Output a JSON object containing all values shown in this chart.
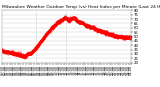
{
  "title": "Milwaukee Weather Outdoor Temp (vs) Heat Index per Minute (Last 24 Hours)",
  "line_color": "#ff0000",
  "background_color": "#ffffff",
  "plot_bg_color": "#ffffff",
  "grid_color": "#bbbbbb",
  "vline_color": "#999999",
  "vline_positions": [
    0.265,
    0.5
  ],
  "ylim": [
    20,
    80
  ],
  "yticks": [
    20,
    25,
    30,
    35,
    40,
    45,
    50,
    55,
    60,
    65,
    70,
    75,
    80
  ],
  "num_points": 1440,
  "title_fontsize": 3.2,
  "tick_fontsize": 2.8,
  "line_width": 0.0,
  "marker_size": 0.7,
  "curve_points": [
    [
      0.0,
      34
    ],
    [
      0.03,
      33
    ],
    [
      0.06,
      32
    ],
    [
      0.09,
      31
    ],
    [
      0.11,
      30
    ],
    [
      0.14,
      29
    ],
    [
      0.16,
      28
    ],
    [
      0.175,
      27
    ],
    [
      0.185,
      28
    ],
    [
      0.2,
      30
    ],
    [
      0.21,
      31
    ],
    [
      0.22,
      30
    ],
    [
      0.23,
      32
    ],
    [
      0.26,
      36
    ],
    [
      0.29,
      42
    ],
    [
      0.32,
      48
    ],
    [
      0.35,
      54
    ],
    [
      0.38,
      59
    ],
    [
      0.41,
      63
    ],
    [
      0.43,
      66
    ],
    [
      0.45,
      68
    ],
    [
      0.47,
      70
    ],
    [
      0.49,
      72
    ],
    [
      0.51,
      70
    ],
    [
      0.52,
      68
    ],
    [
      0.53,
      70
    ],
    [
      0.545,
      71
    ],
    [
      0.555,
      72
    ],
    [
      0.565,
      71
    ],
    [
      0.575,
      69
    ],
    [
      0.59,
      67
    ],
    [
      0.61,
      66
    ],
    [
      0.63,
      65
    ],
    [
      0.65,
      63
    ],
    [
      0.67,
      62
    ],
    [
      0.69,
      61
    ],
    [
      0.71,
      60
    ],
    [
      0.73,
      58
    ],
    [
      0.75,
      57
    ],
    [
      0.77,
      56
    ],
    [
      0.79,
      55
    ],
    [
      0.81,
      54
    ],
    [
      0.83,
      53
    ],
    [
      0.85,
      52
    ],
    [
      0.87,
      51
    ],
    [
      0.89,
      50
    ],
    [
      0.91,
      50
    ],
    [
      0.93,
      50
    ],
    [
      0.95,
      49
    ],
    [
      0.97,
      49
    ],
    [
      0.98,
      49
    ],
    [
      0.99,
      49
    ],
    [
      1.0,
      49
    ]
  ]
}
